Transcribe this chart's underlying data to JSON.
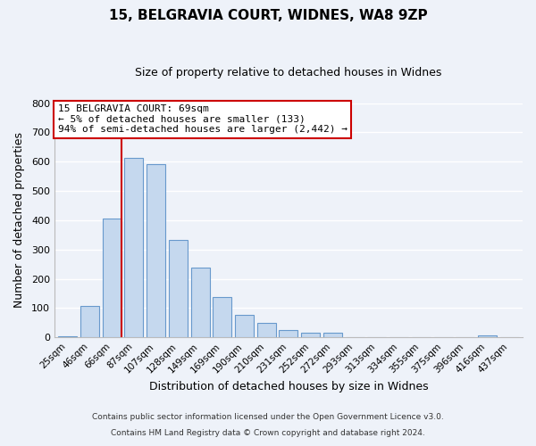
{
  "title": "15, BELGRAVIA COURT, WIDNES, WA8 9ZP",
  "subtitle": "Size of property relative to detached houses in Widnes",
  "xlabel": "Distribution of detached houses by size in Widnes",
  "ylabel": "Number of detached properties",
  "bar_labels": [
    "25sqm",
    "46sqm",
    "66sqm",
    "87sqm",
    "107sqm",
    "128sqm",
    "149sqm",
    "169sqm",
    "190sqm",
    "210sqm",
    "231sqm",
    "252sqm",
    "272sqm",
    "293sqm",
    "313sqm",
    "334sqm",
    "355sqm",
    "375sqm",
    "396sqm",
    "416sqm",
    "437sqm"
  ],
  "bar_values": [
    5,
    107,
    405,
    614,
    591,
    333,
    237,
    137,
    76,
    49,
    26,
    15,
    15,
    0,
    0,
    0,
    0,
    0,
    0,
    8,
    0
  ],
  "bar_color": "#c5d8ee",
  "bar_edge_color": "#6899cc",
  "redline_bar_index": 2,
  "annotation_title": "15 BELGRAVIA COURT: 69sqm",
  "annotation_line1": "← 5% of detached houses are smaller (133)",
  "annotation_line2": "94% of semi-detached houses are larger (2,442) →",
  "annotation_box_facecolor": "#ffffff",
  "annotation_box_edgecolor": "#cc0000",
  "ylim": [
    0,
    800
  ],
  "yticks": [
    0,
    100,
    200,
    300,
    400,
    500,
    600,
    700,
    800
  ],
  "footer1": "Contains HM Land Registry data © Crown copyright and database right 2024.",
  "footer2": "Contains public sector information licensed under the Open Government Licence v3.0.",
  "bg_color": "#eef2f9",
  "grid_color": "#ffffff",
  "title_fontsize": 11,
  "subtitle_fontsize": 9,
  "tick_fontsize": 7.5,
  "axis_label_fontsize": 9
}
